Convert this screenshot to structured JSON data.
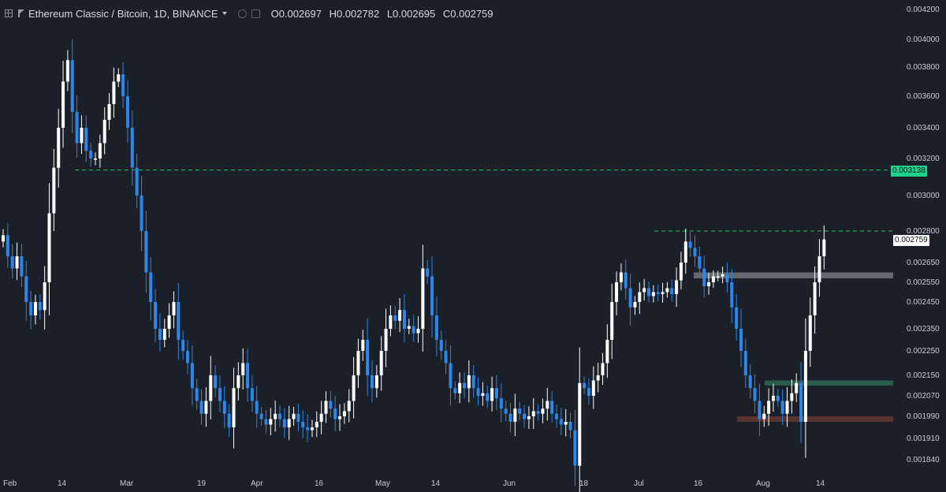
{
  "header": {
    "symbol": "Ethereum Classic / Bitcoin, 1D, BINANCE",
    "ohlc": [
      {
        "key": "O",
        "value": "0.002697"
      },
      {
        "key": "H",
        "value": "0.002782"
      },
      {
        "key": "L",
        "value": "0.002695"
      },
      {
        "key": "C",
        "value": "0.002759"
      }
    ]
  },
  "price_tags": {
    "target": "0.003138",
    "current": "0.002759"
  },
  "colors": {
    "background": "#1b1f27",
    "up": "#ffffff",
    "down": "#2e86e8",
    "dashed_line": "#22c55e",
    "target_tag": "#1fd28c",
    "zone_grey": "#7d8087",
    "zone_green": "#2e6b55",
    "zone_red": "#6e3a30"
  },
  "chart_data": {
    "type": "candlestick",
    "x_labels": [
      "Feb",
      "14",
      "Mar",
      "19",
      "Apr",
      "16",
      "May",
      "14",
      "Jun",
      "18",
      "Jul",
      "16",
      "Aug",
      "14"
    ],
    "y_ticks": [
      "0.004200",
      "0.004000",
      "0.003800",
      "0.003600",
      "0.003400",
      "0.003200",
      "0.003000",
      "0.002800",
      "0.002650",
      "0.002550",
      "0.002450",
      "0.002350",
      "0.002250",
      "0.002150",
      "0.002070",
      "0.001990",
      "0.001910",
      "0.001840"
    ],
    "horizontal_lines": [
      {
        "value": 0.003138,
        "style": "dashed"
      },
      {
        "value": 0.0028,
        "style": "dashed"
      }
    ],
    "zones": [
      {
        "from": 0.00257,
        "to": 0.0026,
        "kind": "grey"
      },
      {
        "from": 0.00211,
        "to": 0.00213,
        "kind": "green"
      },
      {
        "from": 0.00197,
        "to": 0.00199,
        "kind": "red"
      }
    ],
    "close_series": [
      0.00278,
      0.00268,
      0.00262,
      0.00268,
      0.00258,
      0.00245,
      0.0024,
      0.00245,
      0.00242,
      0.00255,
      0.0029,
      0.00315,
      0.0034,
      0.0037,
      0.00385,
      0.0035,
      0.0033,
      0.0034,
      0.00325,
      0.0032,
      0.0032,
      0.0033,
      0.00345,
      0.00355,
      0.0037,
      0.00375,
      0.0036,
      0.0034,
      0.00315,
      0.003,
      0.0028,
      0.0026,
      0.00245,
      0.00235,
      0.0023,
      0.00235,
      0.0024,
      0.00245,
      0.0023,
      0.00225,
      0.0022,
      0.0021,
      0.00205,
      0.002,
      0.00205,
      0.00215,
      0.0021,
      0.00205,
      0.002,
      0.00195,
      0.0021,
      0.00215,
      0.0022,
      0.0021,
      0.00205,
      0.002,
      0.00198,
      0.00196,
      0.00198,
      0.002,
      0.00198,
      0.00195,
      0.00198,
      0.002,
      0.00197,
      0.00195,
      0.00194,
      0.00195,
      0.00197,
      0.002,
      0.00205,
      0.00202,
      0.00198,
      0.00199,
      0.00201,
      0.00205,
      0.00215,
      0.00225,
      0.0023,
      0.00215,
      0.0021,
      0.00215,
      0.00225,
      0.00235,
      0.0024,
      0.00238,
      0.00242,
      0.00235,
      0.00236,
      0.00233,
      0.00235,
      0.00262,
      0.00258,
      0.0024,
      0.0023,
      0.00225,
      0.0022,
      0.0021,
      0.00208,
      0.00212,
      0.0021,
      0.00215,
      0.0021,
      0.00207,
      0.00208,
      0.00205,
      0.0021,
      0.00206,
      0.00202,
      0.002,
      0.00197,
      0.00202,
      0.002,
      0.00198,
      0.00199,
      0.00201,
      0.002,
      0.00202,
      0.00205,
      0.002,
      0.00198,
      0.00196,
      0.00197,
      0.00194,
      0.00182,
      0.00212,
      0.0021,
      0.00207,
      0.00213,
      0.00215,
      0.0022,
      0.0023,
      0.00245,
      0.00255,
      0.0026,
      0.00252,
      0.00243,
      0.00245,
      0.0025,
      0.00252,
      0.00248,
      0.0025,
      0.00249,
      0.0025,
      0.00252,
      0.00249,
      0.00256,
      0.00265,
      0.00275,
      0.00272,
      0.00268,
      0.00262,
      0.00253,
      0.00255,
      0.00258,
      0.00258,
      0.00259,
      0.00255,
      0.00243,
      0.00235,
      0.00225,
      0.00215,
      0.0021,
      0.00205,
      0.00198,
      0.002,
      0.00205,
      0.00207,
      0.00205,
      0.002,
      0.00205,
      0.00208,
      0.00212,
      0.00197,
      0.00225,
      0.0024,
      0.00255,
      0.00268,
      0.00276
    ]
  }
}
